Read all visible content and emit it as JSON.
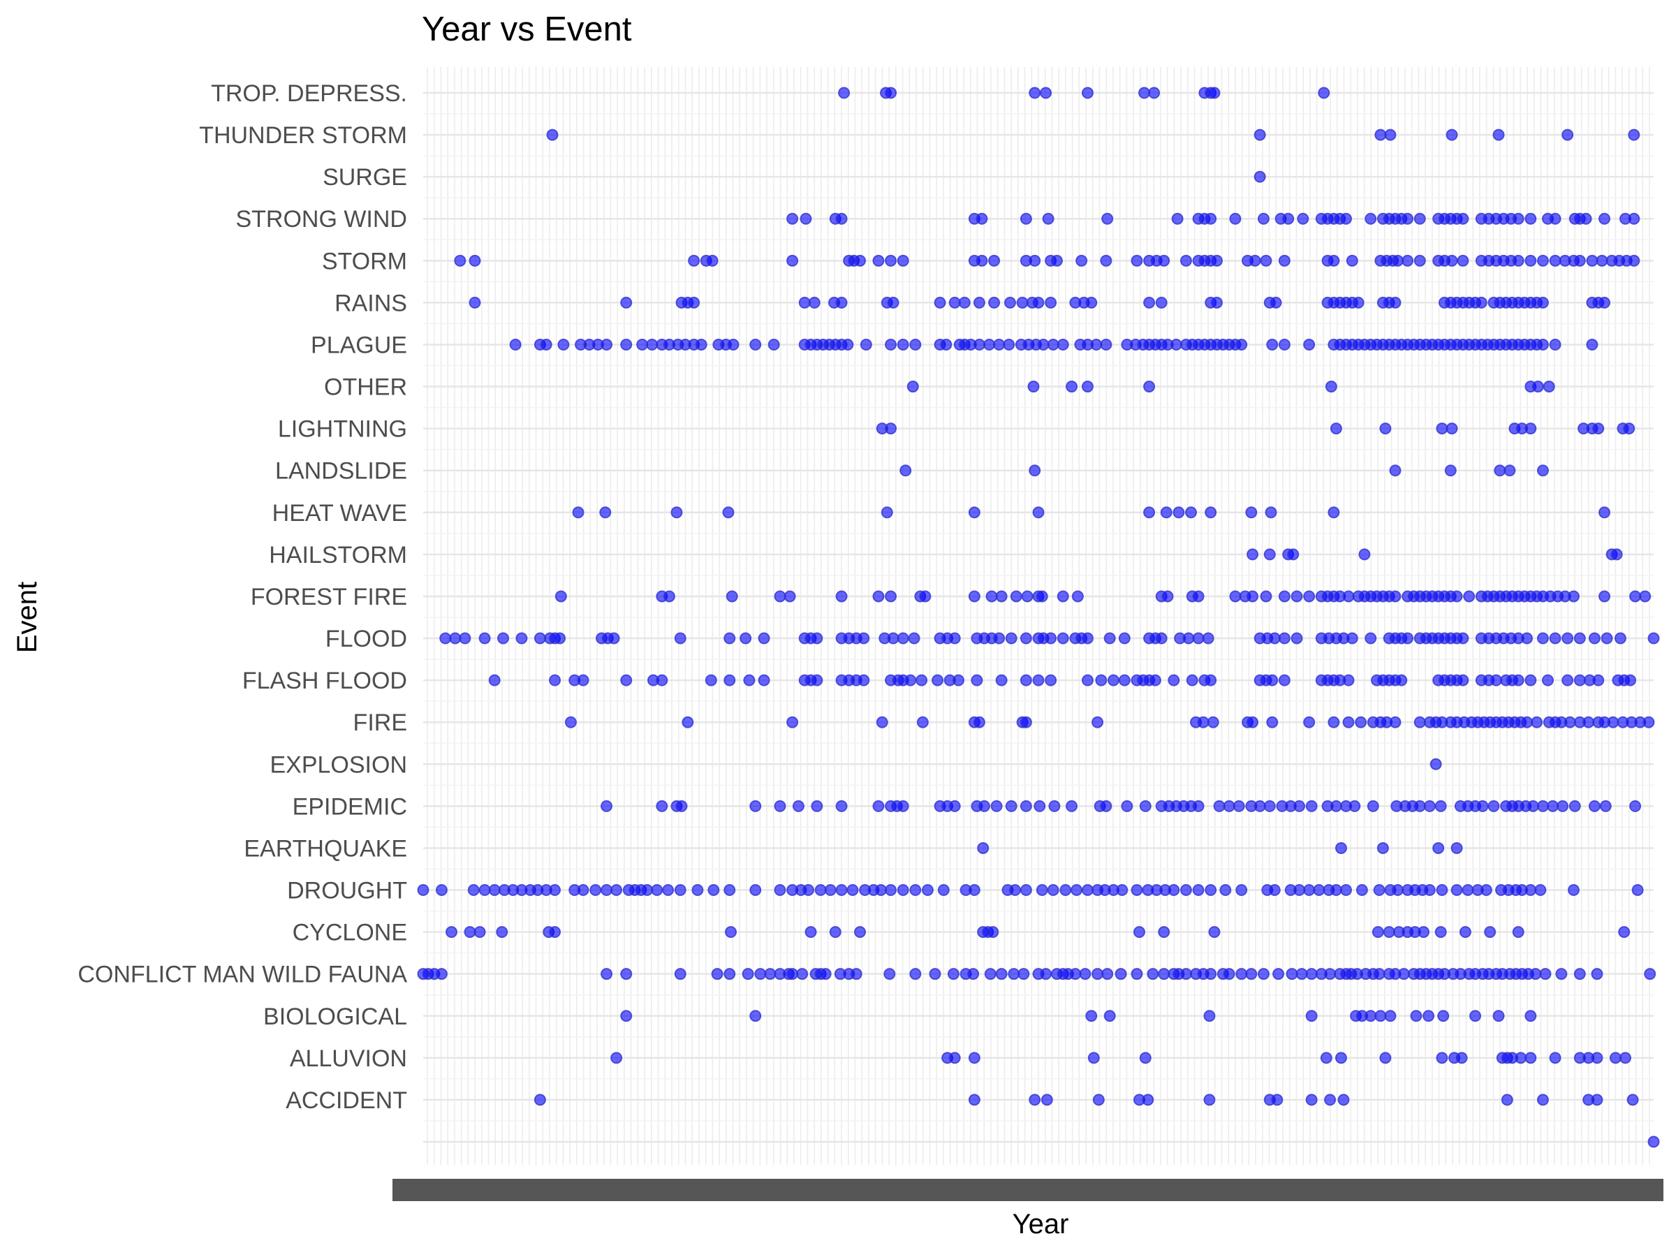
{
  "chart_data": {
    "type": "scatter",
    "title": "Year vs Event",
    "xlabel": "Year",
    "ylabel": "Event",
    "x_tick_labels": "unreadable (overlapping labels, one per sampled date)",
    "grid": true,
    "point_color": "#0000ff",
    "point_opacity": 0.6,
    "categories": [
      "",
      "ACCIDENT",
      "ALLUVION",
      "BIOLOGICAL",
      "CONFLICT MAN WILD FAUNA",
      "CYCLONE",
      "DROUGHT",
      "EARTHQUAKE",
      "EPIDEMIC",
      "EXPLOSION",
      "FIRE",
      "FLASH FLOOD",
      "FLOOD",
      "FOREST FIRE",
      "HAILSTORM",
      "HEAT WAVE",
      "LANDSLIDE",
      "LIGHTNING",
      "OTHER",
      "PLAGUE",
      "RAINS",
      "STORM",
      "STRONG WIND",
      "SURGE",
      "THUNDER STORM",
      "TROP. DEPRESS."
    ],
    "x_range": [
      0,
      1
    ],
    "x_note": "x is the relative position of each point along the ordered Year (date) axis, 0 = first date, 1 = last date",
    "series": [
      {
        "event": "",
        "x": [
          1.0
        ]
      },
      {
        "event": "ACCIDENT",
        "x": [
          0.095,
          0.448,
          0.497,
          0.507,
          0.549,
          0.582,
          0.589,
          0.639,
          0.688,
          0.694,
          0.722,
          0.737,
          0.748,
          0.881,
          0.91,
          0.947,
          0.954,
          0.983
        ]
      },
      {
        "event": "ALLUVION",
        "x": [
          0.157,
          0.426,
          0.432,
          0.448,
          0.545,
          0.587,
          0.734,
          0.746,
          0.782,
          0.828,
          0.838,
          0.844,
          0.877,
          0.881,
          0.885,
          0.892,
          0.9,
          0.92,
          0.94,
          0.947,
          0.954,
          0.969,
          0.977
        ]
      },
      {
        "event": "BIOLOGICAL",
        "x": [
          0.165,
          0.27,
          0.543,
          0.558,
          0.639,
          0.722,
          0.758,
          0.763,
          0.77,
          0.778,
          0.786,
          0.807,
          0.817,
          0.829,
          0.855,
          0.874,
          0.9
        ]
      },
      {
        "event": "CONFLICT MAN WILD FAUNA",
        "x": [
          0.0,
          0.004,
          0.009,
          0.015,
          0.149,
          0.165,
          0.209,
          0.239,
          0.249,
          0.264,
          0.274,
          0.282,
          0.29,
          0.297,
          0.3,
          0.308,
          0.319,
          0.323,
          0.327,
          0.339,
          0.346,
          0.352,
          0.379,
          0.4,
          0.416,
          0.431,
          0.441,
          0.447,
          0.461,
          0.47,
          0.48,
          0.488,
          0.5,
          0.506,
          0.515,
          0.52,
          0.524,
          0.53,
          0.538,
          0.548,
          0.556,
          0.567,
          0.58,
          0.593,
          0.602,
          0.61,
          0.614,
          0.62,
          0.628,
          0.634,
          0.64,
          0.65,
          0.655,
          0.665,
          0.673,
          0.683,
          0.695,
          0.706,
          0.714,
          0.722,
          0.73,
          0.737,
          0.745,
          0.75,
          0.754,
          0.759,
          0.766,
          0.772,
          0.777,
          0.785,
          0.79,
          0.797,
          0.805,
          0.81,
          0.815,
          0.82,
          0.825,
          0.83,
          0.837,
          0.843,
          0.85,
          0.855,
          0.861,
          0.866,
          0.872,
          0.877,
          0.883,
          0.888,
          0.893,
          0.898,
          0.904,
          0.912,
          0.925,
          0.94,
          0.954,
          0.997
        ]
      },
      {
        "event": "CYCLONE",
        "x": [
          0.023,
          0.038,
          0.046,
          0.064,
          0.102,
          0.107,
          0.25,
          0.315,
          0.335,
          0.355,
          0.455,
          0.459,
          0.463,
          0.582,
          0.602,
          0.643,
          0.776,
          0.785,
          0.793,
          0.8,
          0.806,
          0.813,
          0.827,
          0.847,
          0.867,
          0.89,
          0.976
        ]
      },
      {
        "event": "DROUGHT",
        "x": [
          0.0,
          0.015,
          0.041,
          0.05,
          0.058,
          0.066,
          0.073,
          0.08,
          0.087,
          0.093,
          0.1,
          0.107,
          0.123,
          0.13,
          0.14,
          0.149,
          0.157,
          0.167,
          0.172,
          0.177,
          0.182,
          0.19,
          0.199,
          0.209,
          0.223,
          0.236,
          0.249,
          0.27,
          0.29,
          0.3,
          0.307,
          0.313,
          0.323,
          0.331,
          0.34,
          0.349,
          0.359,
          0.366,
          0.372,
          0.38,
          0.39,
          0.4,
          0.41,
          0.423,
          0.441,
          0.448,
          0.475,
          0.481,
          0.49,
          0.503,
          0.512,
          0.522,
          0.531,
          0.54,
          0.548,
          0.554,
          0.561,
          0.568,
          0.58,
          0.589,
          0.596,
          0.603,
          0.61,
          0.62,
          0.63,
          0.64,
          0.652,
          0.665,
          0.686,
          0.692,
          0.705,
          0.712,
          0.72,
          0.728,
          0.736,
          0.742,
          0.75,
          0.763,
          0.777,
          0.786,
          0.792,
          0.8,
          0.806,
          0.812,
          0.818,
          0.828,
          0.84,
          0.849,
          0.857,
          0.864,
          0.876,
          0.882,
          0.888,
          0.893,
          0.9,
          0.908,
          0.935,
          0.987
        ]
      },
      {
        "event": "EARTHQUAKE",
        "x": [
          0.455,
          0.746,
          0.78,
          0.825,
          0.84
        ]
      },
      {
        "event": "EPIDEMIC",
        "x": [
          0.149,
          0.194,
          0.206,
          0.21,
          0.27,
          0.29,
          0.305,
          0.32,
          0.34,
          0.37,
          0.38,
          0.385,
          0.39,
          0.42,
          0.426,
          0.432,
          0.45,
          0.456,
          0.466,
          0.478,
          0.49,
          0.501,
          0.513,
          0.527,
          0.55,
          0.555,
          0.572,
          0.587,
          0.6,
          0.606,
          0.612,
          0.618,
          0.624,
          0.63,
          0.647,
          0.655,
          0.663,
          0.673,
          0.68,
          0.688,
          0.698,
          0.705,
          0.712,
          0.722,
          0.735,
          0.742,
          0.75,
          0.757,
          0.772,
          0.791,
          0.798,
          0.804,
          0.81,
          0.818,
          0.827,
          0.843,
          0.849,
          0.855,
          0.861,
          0.87,
          0.88,
          0.885,
          0.89,
          0.896,
          0.902,
          0.91,
          0.918,
          0.926,
          0.936,
          0.952,
          0.961,
          0.985
        ]
      },
      {
        "event": "EXPLOSION",
        "x": [
          0.823
        ]
      },
      {
        "event": "FIRE",
        "x": [
          0.12,
          0.215,
          0.3,
          0.373,
          0.406,
          0.448,
          0.452,
          0.487,
          0.49,
          0.548,
          0.628,
          0.634,
          0.642,
          0.67,
          0.674,
          0.69,
          0.72,
          0.74,
          0.752,
          0.762,
          0.772,
          0.778,
          0.783,
          0.79,
          0.81,
          0.818,
          0.823,
          0.828,
          0.835,
          0.84,
          0.846,
          0.852,
          0.857,
          0.862,
          0.867,
          0.872,
          0.877,
          0.882,
          0.887,
          0.892,
          0.897,
          0.905,
          0.915,
          0.92,
          0.925,
          0.932,
          0.94,
          0.947,
          0.955,
          0.96,
          0.967,
          0.975,
          0.982,
          0.989,
          0.996
        ]
      },
      {
        "event": "FLASH FLOOD",
        "x": [
          0.058,
          0.107,
          0.123,
          0.13,
          0.165,
          0.187,
          0.194,
          0.234,
          0.249,
          0.265,
          0.277,
          0.31,
          0.315,
          0.32,
          0.34,
          0.346,
          0.352,
          0.358,
          0.38,
          0.386,
          0.39,
          0.396,
          0.405,
          0.418,
          0.428,
          0.435,
          0.45,
          0.47,
          0.49,
          0.5,
          0.51,
          0.54,
          0.551,
          0.561,
          0.57,
          0.58,
          0.585,
          0.59,
          0.595,
          0.61,
          0.625,
          0.635,
          0.64,
          0.68,
          0.685,
          0.69,
          0.7,
          0.73,
          0.735,
          0.74,
          0.745,
          0.752,
          0.775,
          0.78,
          0.785,
          0.79,
          0.795,
          0.825,
          0.83,
          0.835,
          0.84,
          0.845,
          0.86,
          0.866,
          0.872,
          0.88,
          0.885,
          0.89,
          0.9,
          0.914,
          0.93,
          0.94,
          0.948,
          0.955,
          0.971,
          0.976,
          0.981
        ]
      },
      {
        "event": "FLOOD",
        "x": [
          0.018,
          0.026,
          0.034,
          0.05,
          0.065,
          0.08,
          0.095,
          0.103,
          0.107,
          0.111,
          0.145,
          0.15,
          0.155,
          0.209,
          0.249,
          0.262,
          0.277,
          0.31,
          0.315,
          0.32,
          0.34,
          0.346,
          0.352,
          0.358,
          0.375,
          0.382,
          0.39,
          0.399,
          0.42,
          0.426,
          0.432,
          0.45,
          0.456,
          0.462,
          0.468,
          0.478,
          0.49,
          0.5,
          0.504,
          0.51,
          0.52,
          0.53,
          0.535,
          0.54,
          0.558,
          0.57,
          0.59,
          0.595,
          0.6,
          0.615,
          0.622,
          0.63,
          0.638,
          0.68,
          0.686,
          0.692,
          0.7,
          0.71,
          0.73,
          0.736,
          0.742,
          0.748,
          0.755,
          0.77,
          0.785,
          0.79,
          0.795,
          0.8,
          0.81,
          0.815,
          0.82,
          0.825,
          0.83,
          0.835,
          0.84,
          0.845,
          0.86,
          0.866,
          0.872,
          0.878,
          0.884,
          0.89,
          0.897,
          0.91,
          0.92,
          0.93,
          0.94,
          0.952,
          0.962,
          0.973,
          1.0
        ]
      },
      {
        "event": "FOREST FIRE",
        "x": [
          0.112,
          0.194,
          0.2,
          0.251,
          0.29,
          0.298,
          0.34,
          0.37,
          0.38,
          0.404,
          0.408,
          0.448,
          0.462,
          0.47,
          0.482,
          0.491,
          0.5,
          0.503,
          0.52,
          0.532,
          0.6,
          0.605,
          0.625,
          0.63,
          0.66,
          0.668,
          0.674,
          0.685,
          0.7,
          0.71,
          0.72,
          0.73,
          0.735,
          0.74,
          0.745,
          0.752,
          0.76,
          0.765,
          0.77,
          0.775,
          0.78,
          0.785,
          0.79,
          0.8,
          0.805,
          0.81,
          0.815,
          0.82,
          0.825,
          0.83,
          0.835,
          0.84,
          0.85,
          0.86,
          0.865,
          0.87,
          0.875,
          0.88,
          0.885,
          0.89,
          0.895,
          0.9,
          0.905,
          0.91,
          0.916,
          0.922,
          0.928,
          0.935,
          0.96,
          0.985,
          0.993
        ]
      },
      {
        "event": "HAILSTORM",
        "x": [
          0.674,
          0.688,
          0.703,
          0.707,
          0.765,
          0.966,
          0.97
        ]
      },
      {
        "event": "HEAT WAVE",
        "x": [
          0.126,
          0.148,
          0.206,
          0.248,
          0.377,
          0.448,
          0.5,
          0.59,
          0.604,
          0.614,
          0.624,
          0.64,
          0.673,
          0.689,
          0.74,
          0.96
        ]
      },
      {
        "event": "LANDSLIDE",
        "x": [
          0.392,
          0.497,
          0.79,
          0.835,
          0.875,
          0.883,
          0.91
        ]
      },
      {
        "event": "LIGHTNING",
        "x": [
          0.373,
          0.38,
          0.742,
          0.782,
          0.828,
          0.836,
          0.887,
          0.893,
          0.9,
          0.943,
          0.95,
          0.955,
          0.975,
          0.98
        ]
      },
      {
        "event": "OTHER",
        "x": [
          0.398,
          0.496,
          0.527,
          0.54,
          0.59,
          0.738,
          0.9,
          0.906,
          0.915
        ]
      },
      {
        "event": "PLAGUE",
        "x": [
          0.075,
          0.095,
          0.1,
          0.114,
          0.128,
          0.135,
          0.142,
          0.149,
          0.165,
          0.178,
          0.186,
          0.194,
          0.2,
          0.207,
          0.213,
          0.22,
          0.226,
          0.24,
          0.246,
          0.252,
          0.27,
          0.285,
          0.31,
          0.315,
          0.32,
          0.325,
          0.33,
          0.335,
          0.34,
          0.345,
          0.36,
          0.38,
          0.39,
          0.4,
          0.42,
          0.425,
          0.436,
          0.44,
          0.445,
          0.452,
          0.46,
          0.468,
          0.476,
          0.486,
          0.492,
          0.498,
          0.504,
          0.512,
          0.52,
          0.534,
          0.54,
          0.547,
          0.555,
          0.572,
          0.579,
          0.585,
          0.59,
          0.595,
          0.6,
          0.605,
          0.612,
          0.62,
          0.625,
          0.63,
          0.635,
          0.64,
          0.645,
          0.65,
          0.655,
          0.66,
          0.665,
          0.69,
          0.7,
          0.72,
          0.74,
          0.745,
          0.75,
          0.755,
          0.76,
          0.765,
          0.77,
          0.775,
          0.78,
          0.785,
          0.79,
          0.795,
          0.8,
          0.805,
          0.81,
          0.815,
          0.82,
          0.825,
          0.83,
          0.835,
          0.84,
          0.845,
          0.85,
          0.855,
          0.86,
          0.865,
          0.87,
          0.875,
          0.88,
          0.885,
          0.89,
          0.895,
          0.9,
          0.905,
          0.91,
          0.92,
          0.95
        ]
      },
      {
        "event": "RAINS",
        "x": [
          0.042,
          0.165,
          0.21,
          0.215,
          0.22,
          0.31,
          0.318,
          0.334,
          0.34,
          0.377,
          0.382,
          0.42,
          0.432,
          0.44,
          0.452,
          0.464,
          0.477,
          0.487,
          0.495,
          0.5,
          0.51,
          0.53,
          0.537,
          0.543,
          0.59,
          0.6,
          0.64,
          0.645,
          0.688,
          0.693,
          0.735,
          0.74,
          0.745,
          0.75,
          0.755,
          0.76,
          0.78,
          0.785,
          0.79,
          0.83,
          0.835,
          0.84,
          0.845,
          0.85,
          0.855,
          0.86,
          0.87,
          0.875,
          0.88,
          0.885,
          0.89,
          0.895,
          0.9,
          0.905,
          0.91,
          0.95,
          0.955,
          0.96
        ]
      },
      {
        "event": "STORM",
        "x": [
          0.03,
          0.042,
          0.22,
          0.23,
          0.235,
          0.3,
          0.346,
          0.35,
          0.355,
          0.37,
          0.38,
          0.39,
          0.448,
          0.454,
          0.464,
          0.49,
          0.497,
          0.51,
          0.515,
          0.535,
          0.555,
          0.58,
          0.59,
          0.596,
          0.602,
          0.62,
          0.63,
          0.635,
          0.64,
          0.645,
          0.67,
          0.676,
          0.685,
          0.7,
          0.735,
          0.74,
          0.755,
          0.778,
          0.783,
          0.788,
          0.792,
          0.8,
          0.81,
          0.825,
          0.83,
          0.836,
          0.845,
          0.86,
          0.866,
          0.872,
          0.878,
          0.884,
          0.89,
          0.9,
          0.91,
          0.92,
          0.928,
          0.935,
          0.94,
          0.95,
          0.958,
          0.966,
          0.972,
          0.978,
          0.984
        ]
      },
      {
        "event": "STRONG WIND",
        "x": [
          0.3,
          0.311,
          0.335,
          0.34,
          0.448,
          0.454,
          0.49,
          0.508,
          0.556,
          0.613,
          0.63,
          0.635,
          0.64,
          0.66,
          0.683,
          0.697,
          0.703,
          0.715,
          0.73,
          0.735,
          0.74,
          0.745,
          0.75,
          0.77,
          0.78,
          0.785,
          0.79,
          0.795,
          0.8,
          0.81,
          0.825,
          0.83,
          0.835,
          0.84,
          0.845,
          0.86,
          0.866,
          0.872,
          0.878,
          0.884,
          0.89,
          0.9,
          0.914,
          0.92,
          0.936,
          0.94,
          0.945,
          0.96,
          0.977,
          0.984
        ]
      },
      {
        "event": "SURGE",
        "x": [
          0.68
        ]
      },
      {
        "event": "THUNDER STORM",
        "x": [
          0.105,
          0.68,
          0.778,
          0.786,
          0.836,
          0.874,
          0.93,
          0.984
        ]
      },
      {
        "event": "TROP. DEPRESS.",
        "x": [
          0.342,
          0.376,
          0.38,
          0.497,
          0.506,
          0.54,
          0.586,
          0.594,
          0.635,
          0.64,
          0.643,
          0.732
        ]
      }
    ]
  }
}
